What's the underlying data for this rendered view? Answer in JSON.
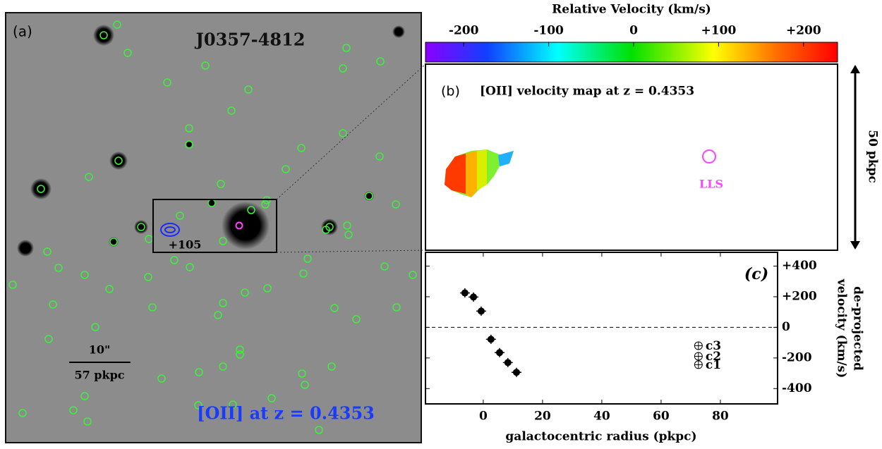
{
  "panel_a": {
    "label": "(a)",
    "field": "J0357-4812",
    "velocity_tag": "+105",
    "scale_arcsec": "10\"",
    "scale_pkpc": "57 pkpc",
    "line_label": "[OII] at z = 0.4353"
  },
  "colorbar": {
    "title": "Relative Velocity (km/s)",
    "lim": [
      -245,
      240
    ],
    "ticks": [
      -200,
      -100,
      0,
      {
        "value": 100,
        "label": "+100"
      },
      {
        "value": 200,
        "label": "+200"
      }
    ]
  },
  "panel_b": {
    "label": "(b)",
    "title": "[OII] velocity map at z = 0.4353",
    "marker_label": "LLS",
    "scale": "50 pkpc"
  },
  "chart_data": {
    "type": "scatter",
    "panel_label": "(c)",
    "xlabel": "galactocentric radius (pkpc)",
    "ylabel": [
      "de-projected",
      "velocity (km/s)"
    ],
    "xlim": [
      -19.5,
      99.3
    ],
    "xticks": [
      0,
      20,
      40,
      60,
      80
    ],
    "ylim": [
      -500,
      490
    ],
    "yticks": [
      {
        "value": 400,
        "label": "+400"
      },
      {
        "value": 200,
        "label": "+200"
      },
      0,
      -200,
      -400
    ],
    "series": [
      {
        "marker": "filled",
        "color": "#000000",
        "x": [
          -6.2,
          -3.3,
          -0.7,
          2.6,
          5.5,
          8.3,
          11.2
        ],
        "values": [
          225,
          198,
          106,
          -78,
          -165,
          -230,
          -294
        ],
        "errors": [
          30,
          30,
          30,
          30,
          30,
          30,
          30
        ]
      },
      {
        "marker": "open",
        "color": "#000000",
        "x": [
          72.6,
          72.6,
          72.6
        ],
        "values": [
          -120,
          -189,
          -244
        ],
        "labels": [
          "c3",
          "c2",
          "c1"
        ]
      }
    ]
  }
}
